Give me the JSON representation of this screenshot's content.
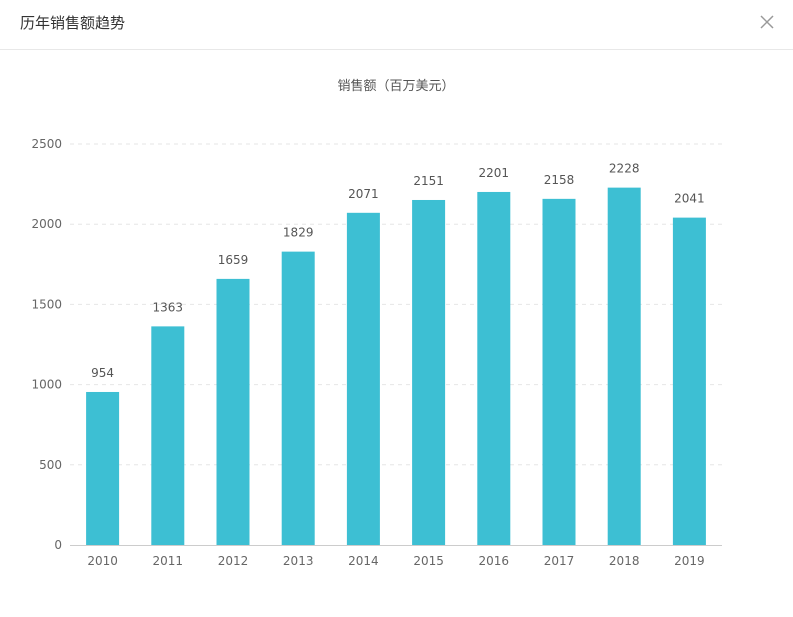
{
  "dialog": {
    "title": "历年销售额趋势"
  },
  "colors": {
    "bar": "#3dbfd3",
    "axis_text": "#666666",
    "label_text": "#555555",
    "grid": "#e6e6e6",
    "axis_line": "#cccccc"
  },
  "chart_data": {
    "type": "bar",
    "title": "销售额（百万美元）",
    "xlabel": "",
    "ylabel": "",
    "categories": [
      "2010",
      "2011",
      "2012",
      "2013",
      "2014",
      "2015",
      "2016",
      "2017",
      "2018",
      "2019"
    ],
    "values": [
      954,
      1363,
      1659,
      1829,
      2071,
      2151,
      2201,
      2158,
      2228,
      2041
    ],
    "ylim": [
      0,
      2500
    ],
    "yticks": [
      0,
      500,
      1000,
      1500,
      2000,
      2500
    ],
    "grid": true,
    "grid_style": "dashed",
    "data_labels": true,
    "legend": "none"
  }
}
